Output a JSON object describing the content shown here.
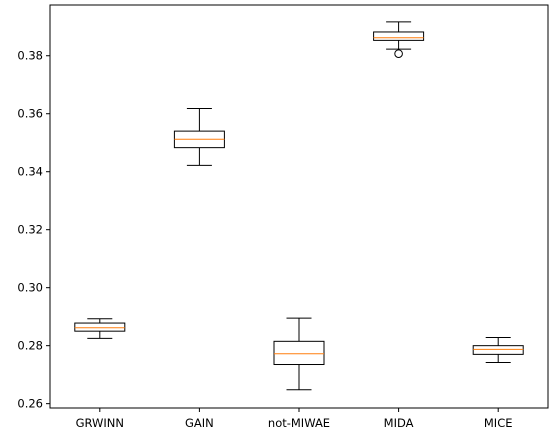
{
  "chart_data": {
    "type": "box",
    "categories": [
      "GRWINN",
      "GAIN",
      "not-MIWAE",
      "MIDA",
      "MICE"
    ],
    "boxes": [
      {
        "name": "GRWINN",
        "whislo": 0.2825,
        "q1": 0.285,
        "median": 0.2862,
        "q3": 0.2878,
        "whishi": 0.2893,
        "fliers": []
      },
      {
        "name": "GAIN",
        "whislo": 0.3422,
        "q1": 0.3483,
        "median": 0.3512,
        "q3": 0.354,
        "whishi": 0.3618,
        "fliers": []
      },
      {
        "name": "not-MIWAE",
        "whislo": 0.2648,
        "q1": 0.2735,
        "median": 0.2772,
        "q3": 0.2815,
        "whishi": 0.2895,
        "fliers": []
      },
      {
        "name": "MIDA",
        "whislo": 0.3823,
        "q1": 0.3853,
        "median": 0.3862,
        "q3": 0.3882,
        "whishi": 0.3917,
        "fliers": [
          0.3807
        ]
      },
      {
        "name": "MICE",
        "whislo": 0.2742,
        "q1": 0.277,
        "median": 0.2787,
        "q3": 0.28,
        "whishi": 0.2828,
        "fliers": []
      }
    ],
    "ylim": [
      0.2585,
      0.3975
    ],
    "yticks": [
      0.26,
      0.28,
      0.3,
      0.32,
      0.34,
      0.36,
      0.38
    ],
    "ytick_labels": [
      "0.26",
      "0.28",
      "0.30",
      "0.32",
      "0.34",
      "0.36",
      "0.38"
    ],
    "xlabel": "",
    "ylabel": "",
    "title": "",
    "grid": false,
    "colors": {
      "box": "#000000",
      "median": "#ff7f0e",
      "axis": "#000000"
    }
  }
}
